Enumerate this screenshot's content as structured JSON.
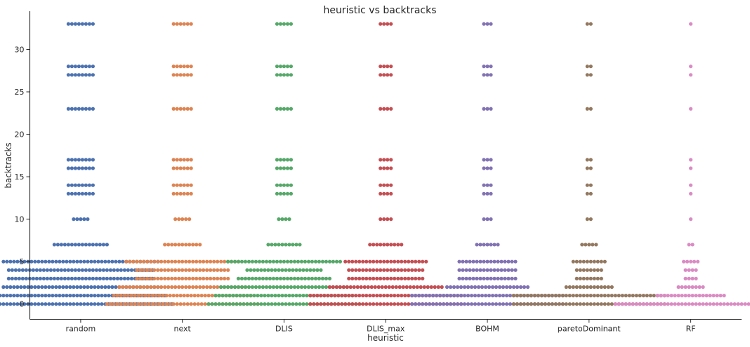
{
  "chart_data": {
    "type": "swarm",
    "title": "heuristic vs backtracks",
    "xlabel": "heuristic",
    "ylabel": "backtracks",
    "ylim": [
      -1.8,
      34.5
    ],
    "yticks": [
      0,
      5,
      10,
      15,
      20,
      25,
      30
    ],
    "grid": false,
    "legend": "none",
    "categories": [
      "random",
      "next",
      "DLIS",
      "DLIS_max",
      "BOHM",
      "paretoDominant",
      "RF"
    ],
    "colors": [
      "#4c72b0",
      "#dd8452",
      "#55a868",
      "#c44e52",
      "#8172b3",
      "#937860",
      "#da8bc3"
    ],
    "series": [
      {
        "category": "random",
        "counts": {
          "0": 53,
          "1": 49,
          "2": 45,
          "3": 42,
          "4": 42,
          "5": 45,
          "7": 16,
          "10": 5,
          "13": 8,
          "14": 8,
          "16": 8,
          "17": 8,
          "23": 8,
          "27": 8,
          "28": 8,
          "33": 8
        }
      },
      {
        "category": "next",
        "counts": {
          "0": 44,
          "1": 40,
          "2": 37,
          "3": 27,
          "4": 27,
          "5": 33,
          "7": 11,
          "10": 5,
          "13": 6,
          "14": 6,
          "16": 6,
          "17": 6,
          "23": 6,
          "27": 6,
          "28": 6,
          "33": 6
        }
      },
      {
        "category": "DLIS",
        "counts": {
          "0": 44,
          "1": 40,
          "2": 37,
          "3": 27,
          "4": 22,
          "5": 33,
          "7": 10,
          "10": 4,
          "13": 5,
          "14": 5,
          "16": 5,
          "17": 5,
          "23": 5,
          "27": 5,
          "28": 5,
          "33": 5
        }
      },
      {
        "category": "DLIS_max",
        "counts": {
          "0": 44,
          "1": 44,
          "2": 33,
          "3": 22,
          "4": 22,
          "5": 24,
          "7": 10,
          "10": 4,
          "13": 4,
          "14": 4,
          "16": 4,
          "17": 4,
          "23": 4,
          "27": 4,
          "28": 4,
          "33": 4
        }
      },
      {
        "category": "BOHM",
        "counts": {
          "0": 44,
          "1": 44,
          "2": 24,
          "3": 17,
          "4": 17,
          "5": 17,
          "7": 7,
          "10": 3,
          "13": 3,
          "14": 3,
          "16": 3,
          "17": 3,
          "23": 3,
          "27": 3,
          "28": 3,
          "33": 3
        }
      },
      {
        "category": "paretoDominant",
        "counts": {
          "0": 44,
          "1": 44,
          "2": 14,
          "3": 8,
          "4": 8,
          "5": 10,
          "7": 5,
          "10": 2,
          "13": 2,
          "14": 2,
          "16": 2,
          "17": 2,
          "23": 2,
          "27": 2,
          "28": 2,
          "33": 2
        }
      },
      {
        "category": "RF",
        "counts": {
          "0": 44,
          "1": 20,
          "2": 8,
          "3": 4,
          "4": 4,
          "5": 5,
          "7": 2,
          "10": 1,
          "13": 1,
          "14": 1,
          "16": 1,
          "17": 1,
          "23": 1,
          "27": 1,
          "28": 1,
          "33": 1
        }
      }
    ]
  }
}
